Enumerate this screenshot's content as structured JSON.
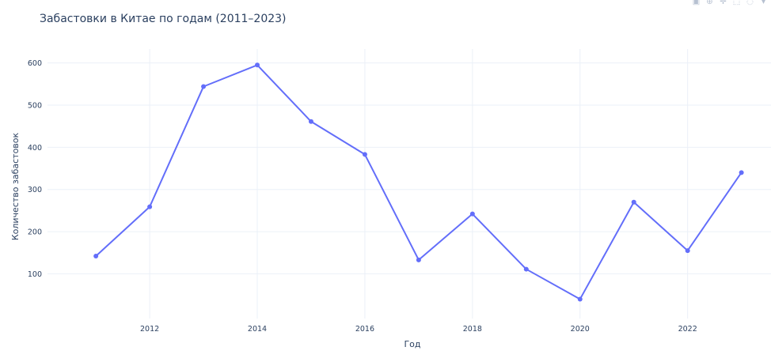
{
  "chart_data": {
    "type": "line",
    "title": "Забастовки в Китае по годам (2011–2023)",
    "xlabel": "Год",
    "ylabel": "Количество забастовок",
    "x": [
      2011,
      2012,
      2013,
      2014,
      2015,
      2016,
      2017,
      2018,
      2019,
      2020,
      2021,
      2022,
      2023
    ],
    "series": [
      {
        "values": [
          142,
          259,
          544,
          595,
          461,
          383,
          133,
          242,
          111,
          40,
          270,
          155,
          340
        ]
      }
    ],
    "xticks": [
      2012,
      2014,
      2016,
      2018,
      2020,
      2022
    ],
    "yticks": [
      100,
      200,
      300,
      400,
      500,
      600
    ],
    "xlim": [
      2010.1,
      2023.55
    ],
    "ylim": [
      -6,
      633
    ],
    "grid": true,
    "legend": "none",
    "line_color": "#636efa",
    "grid_color": "#ebf0f8",
    "text_color": "#2a3f5f"
  },
  "modebar": {
    "icons": [
      "camera-icon",
      "zoom-icon",
      "pan-icon",
      "box-select-icon",
      "lasso-icon",
      "zoom-in-icon"
    ]
  }
}
